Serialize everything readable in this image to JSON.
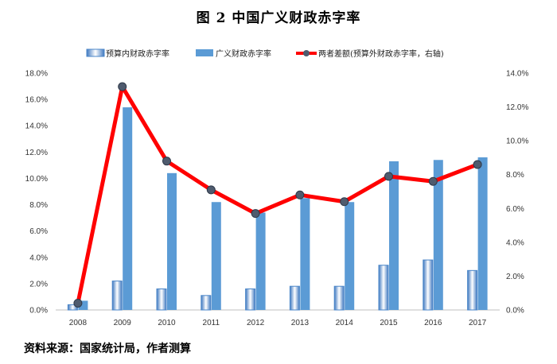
{
  "title": "图 2 中国广义财政赤字率",
  "source": "资料来源：国家统计局，作者测算",
  "chart_data": {
    "type": "bar",
    "categories": [
      "2008",
      "2009",
      "2010",
      "2011",
      "2012",
      "2013",
      "2014",
      "2015",
      "2016",
      "2017"
    ],
    "series": [
      {
        "name": "预算内财政赤字率",
        "kind": "bar",
        "axis": "left",
        "values": [
          0.4,
          2.2,
          1.6,
          1.1,
          1.6,
          1.8,
          1.8,
          3.4,
          3.8,
          3.0
        ],
        "color": "#4a86c8",
        "style": "gradient"
      },
      {
        "name": "广义财政赤字率",
        "kind": "bar",
        "axis": "left",
        "values": [
          0.7,
          15.4,
          10.4,
          8.2,
          7.4,
          8.5,
          8.2,
          11.3,
          11.4,
          11.6
        ],
        "color": "#5b9bd5"
      },
      {
        "name": "两者差额(预算外财政赤字率，右轴)",
        "kind": "line",
        "axis": "right",
        "values": [
          0.4,
          13.2,
          8.8,
          7.1,
          5.7,
          6.8,
          6.4,
          7.9,
          7.6,
          8.6
        ],
        "color": "#ff0000",
        "marker_color": "#4f5b6e"
      }
    ],
    "y_left": {
      "ylim": [
        0,
        18
      ],
      "ticks": [
        "0.0%",
        "2.0%",
        "4.0%",
        "6.0%",
        "8.0%",
        "10.0%",
        "12.0%",
        "14.0%",
        "16.0%",
        "18.0%"
      ]
    },
    "y_right": {
      "ylim": [
        0,
        14
      ],
      "ticks": [
        "0.0%",
        "2.0%",
        "4.0%",
        "6.0%",
        "8.0%",
        "10.0%",
        "12.0%",
        "14.0%"
      ]
    },
    "grid": false,
    "legend": "top-center"
  }
}
